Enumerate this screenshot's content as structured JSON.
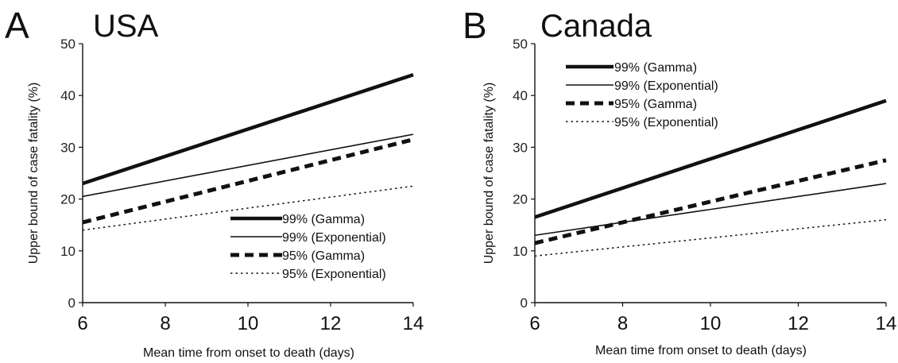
{
  "chart_data": [
    {
      "panel": "A",
      "title": "USA",
      "type": "line",
      "xlabel": "Mean time from onset to death (days)",
      "ylabel": "Upper bound of case fatality (%)",
      "xlim": [
        6,
        14
      ],
      "ylim": [
        0,
        50
      ],
      "xticks": [
        6,
        8,
        10,
        12,
        14
      ],
      "yticks": [
        0,
        10,
        20,
        30,
        40,
        50
      ],
      "grid": false,
      "legend_position": "bottom-right",
      "series": [
        {
          "name": "99% (Gamma)",
          "style": "thick-solid",
          "x": [
            6,
            14
          ],
          "y": [
            23,
            44
          ]
        },
        {
          "name": "99% (Exponential)",
          "style": "thin-solid",
          "x": [
            6,
            14
          ],
          "y": [
            20.5,
            32.5
          ]
        },
        {
          "name": "95% (Gamma)",
          "style": "thick-dashed",
          "x": [
            6,
            14
          ],
          "y": [
            15.5,
            31.5
          ]
        },
        {
          "name": "95% (Exponential)",
          "style": "dotted",
          "x": [
            6,
            14
          ],
          "y": [
            14,
            22.5
          ]
        }
      ]
    },
    {
      "panel": "B",
      "title": "Canada",
      "type": "line",
      "xlabel": "Mean time from onset to death (days)",
      "ylabel": "Upper bound of case fatality (%)",
      "xlim": [
        6,
        14
      ],
      "ylim": [
        0,
        50
      ],
      "xticks": [
        6,
        8,
        10,
        12,
        14
      ],
      "yticks": [
        0,
        10,
        20,
        30,
        40,
        50
      ],
      "grid": false,
      "legend_position": "top-left",
      "series": [
        {
          "name": "99% (Gamma)",
          "style": "thick-solid",
          "x": [
            6,
            14
          ],
          "y": [
            16.5,
            39
          ]
        },
        {
          "name": "99% (Exponential)",
          "style": "thin-solid",
          "x": [
            6,
            14
          ],
          "y": [
            13,
            23
          ]
        },
        {
          "name": "95% (Gamma)",
          "style": "thick-dashed",
          "x": [
            6,
            14
          ],
          "y": [
            11.5,
            27.5
          ]
        },
        {
          "name": "95% (Exponential)",
          "style": "dotted",
          "x": [
            6,
            14
          ],
          "y": [
            9,
            16
          ]
        }
      ]
    }
  ]
}
